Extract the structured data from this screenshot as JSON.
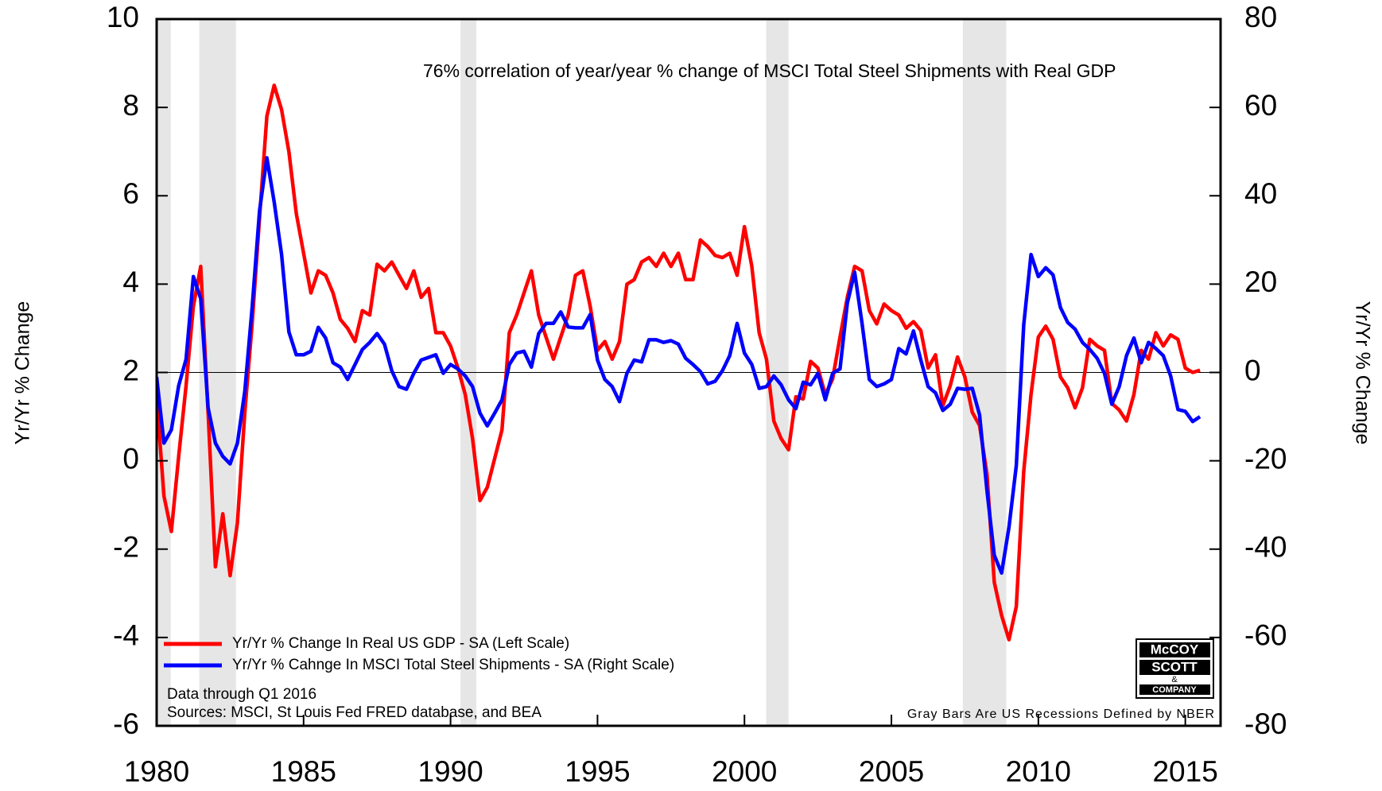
{
  "chart_data": {
    "type": "line",
    "annotation": "76% correlation of year/year % change of MSCI Total Steel Shipments with Real GDP",
    "ylabel": "Yr/Yr % Change",
    "y2label": "Yr/Yr % Change",
    "notes": [
      "Data through Q1 2016",
      "Sources: MSCI, St Louis Fed FRED database, and BEA"
    ],
    "recession_note": "Gray Bars Are US Recessions Defined by NBER",
    "logo": [
      "McCOY",
      "SCOTT",
      "&",
      "COMPANY"
    ],
    "legend": "lower left",
    "recession_color": "#e6e6e6",
    "recessions": [
      [
        1980.0,
        1980.48
      ],
      [
        1981.45,
        1982.7
      ],
      [
        1990.34,
        1990.88
      ],
      [
        2000.74,
        2001.5
      ],
      [
        2007.43,
        2008.91
      ]
    ],
    "y2_reference_line": 0,
    "xlim": [
      1980,
      2016.2
    ],
    "xticks": [
      1980,
      1985,
      1990,
      1995,
      2000,
      2005,
      2010,
      2015
    ],
    "ylim": [
      -6,
      10
    ],
    "yticks": [
      -6,
      -4,
      -2,
      0,
      2,
      4,
      6,
      8,
      10
    ],
    "y2lim": [
      -80,
      80
    ],
    "y2ticks": [
      -80,
      -60,
      -40,
      -20,
      0,
      20,
      40,
      60,
      80
    ],
    "x": [
      1980,
      1980.25,
      1980.5,
      1980.75,
      1981,
      1981.25,
      1981.5,
      1981.75,
      1982,
      1982.25,
      1982.5,
      1982.75,
      1983,
      1983.25,
      1983.5,
      1983.75,
      1984,
      1984.25,
      1984.5,
      1984.75,
      1985,
      1985.25,
      1985.5,
      1985.75,
      1986,
      1986.25,
      1986.5,
      1986.75,
      1987,
      1987.25,
      1987.5,
      1987.75,
      1988,
      1988.25,
      1988.5,
      1988.75,
      1989,
      1989.25,
      1989.5,
      1989.75,
      1990,
      1990.25,
      1990.5,
      1990.75,
      1991,
      1991.25,
      1991.5,
      1991.75,
      1992,
      1992.25,
      1992.5,
      1992.75,
      1993,
      1993.25,
      1993.5,
      1993.75,
      1994,
      1994.25,
      1994.5,
      1994.75,
      1995,
      1995.25,
      1995.5,
      1995.75,
      1996,
      1996.25,
      1996.5,
      1996.75,
      1997,
      1997.25,
      1997.5,
      1997.75,
      1998,
      1998.25,
      1998.5,
      1998.75,
      1999,
      1999.25,
      1999.5,
      1999.75,
      2000,
      2000.25,
      2000.5,
      2000.75,
      2001,
      2001.25,
      2001.5,
      2001.75,
      2002,
      2002.25,
      2002.5,
      2002.75,
      2003,
      2003.25,
      2003.5,
      2003.75,
      2004,
      2004.25,
      2004.5,
      2004.75,
      2005,
      2005.25,
      2005.5,
      2005.75,
      2006,
      2006.25,
      2006.5,
      2006.75,
      2007,
      2007.25,
      2007.5,
      2007.75,
      2008,
      2008.25,
      2008.5,
      2008.75,
      2009,
      2009.25,
      2009.5,
      2009.75,
      2010,
      2010.25,
      2010.5,
      2010.75,
      2011,
      2011.25,
      2011.5,
      2011.75,
      2012,
      2012.25,
      2012.5,
      2012.75,
      2013,
      2013.25,
      2013.5,
      2013.75,
      2014,
      2014.25,
      2014.5,
      2014.75,
      2015,
      2015.25,
      2015.5
    ],
    "series": [
      {
        "name": "Yr/Yr % Change In Real US GDP - SA (Left Scale)",
        "color": "#ff0000",
        "values": [
          1.44,
          -0.8,
          -1.6,
          0.1,
          1.7,
          3.5,
          4.4,
          1.1,
          -2.4,
          -1.2,
          -2.6,
          -1.4,
          1.1,
          3.1,
          5.5,
          7.8,
          8.5,
          7.95,
          7.0,
          5.6,
          4.7,
          3.8,
          4.3,
          4.2,
          3.8,
          3.2,
          3.0,
          2.7,
          3.4,
          3.3,
          4.45,
          4.3,
          4.5,
          4.2,
          3.9,
          4.3,
          3.7,
          3.9,
          2.9,
          2.9,
          2.6,
          2.1,
          1.5,
          0.5,
          -0.9,
          -0.6,
          0.05,
          0.7,
          2.9,
          3.3,
          3.8,
          4.3,
          3.3,
          2.8,
          2.3,
          2.8,
          3.3,
          4.2,
          4.3,
          3.5,
          2.5,
          2.7,
          2.3,
          2.7,
          4.0,
          4.1,
          4.5,
          4.6,
          4.4,
          4.7,
          4.4,
          4.7,
          4.1,
          4.1,
          5.0,
          4.85,
          4.65,
          4.6,
          4.7,
          4.2,
          5.3,
          4.4,
          2.9,
          2.3,
          0.9,
          0.5,
          0.25,
          1.45,
          1.4,
          2.25,
          2.1,
          1.5,
          1.85,
          2.8,
          3.7,
          4.4,
          4.3,
          3.4,
          3.1,
          3.55,
          3.4,
          3.3,
          3.0,
          3.15,
          2.95,
          2.1,
          2.4,
          1.25,
          1.7,
          2.35,
          1.9,
          1.1,
          0.8,
          -0.3,
          -2.75,
          -3.5,
          -4.05,
          -3.3,
          -0.25,
          1.5,
          2.8,
          3.05,
          2.75,
          1.9,
          1.65,
          1.2,
          1.65,
          2.75,
          2.6,
          2.5,
          1.3,
          1.15,
          0.9,
          1.5,
          2.5,
          2.3,
          2.9,
          2.6,
          2.85,
          2.75,
          2.1,
          2.0,
          2.05
        ]
      },
      {
        "name": "Yr/Yr % Cahnge In MSCI Total Steel Shipments - SA (Right Scale)",
        "color": "#0000ff",
        "axis": "y2",
        "values": [
          -1,
          -16,
          -13,
          -3,
          3,
          21.7,
          16.7,
          -8,
          -16,
          -19,
          -20.7,
          -16,
          -4.2,
          14.7,
          36.6,
          48.6,
          38.6,
          26.7,
          9.2,
          4,
          4,
          4.8,
          10.2,
          7.8,
          2.2,
          1.2,
          -1.6,
          1.8,
          5.2,
          6.8,
          8.8,
          6.4,
          0.4,
          -3.2,
          -3.8,
          -0.2,
          2.8,
          3.4,
          4,
          -0.2,
          1.8,
          0.8,
          -0.8,
          -3.2,
          -9.2,
          -12.1,
          -9.2,
          -6.2,
          1.8,
          4.4,
          4.8,
          1.2,
          8.8,
          11.1,
          11.1,
          13.7,
          10.3,
          10.1,
          10.1,
          13.1,
          2.8,
          -1.6,
          -3.2,
          -6.6,
          -0.2,
          2.8,
          2.4,
          7.4,
          7.4,
          6.8,
          7.2,
          6.4,
          3.2,
          1.8,
          0.2,
          -2.6,
          -2.0,
          0.4,
          3.8,
          11.1,
          4.4,
          1.8,
          -3.6,
          -3.2,
          -0.8,
          -2.8,
          -6.2,
          -8.2,
          -2.2,
          -2.8,
          -0.2,
          -6.2,
          -0.2,
          0.8,
          15.7,
          22.7,
          11.1,
          -1.6,
          -3.2,
          -2.6,
          -1.6,
          5.4,
          4.2,
          9.4,
          2.8,
          -3.2,
          -4.6,
          -8.6,
          -7.2,
          -3.6,
          -3.8,
          -3.6,
          -9.6,
          -26.7,
          -41.4,
          -45.4,
          -35,
          -21.1,
          10.7,
          26.7,
          21.7,
          23.7,
          22.1,
          14.7,
          11.3,
          9.8,
          6.8,
          5.2,
          3.2,
          -0.2,
          -7.2,
          -3.2,
          3.8,
          7.8,
          2.2,
          6.8,
          5.4,
          3.8,
          -0.8,
          -8.4,
          -8.8,
          -11.1,
          -10.0
        ]
      }
    ]
  }
}
